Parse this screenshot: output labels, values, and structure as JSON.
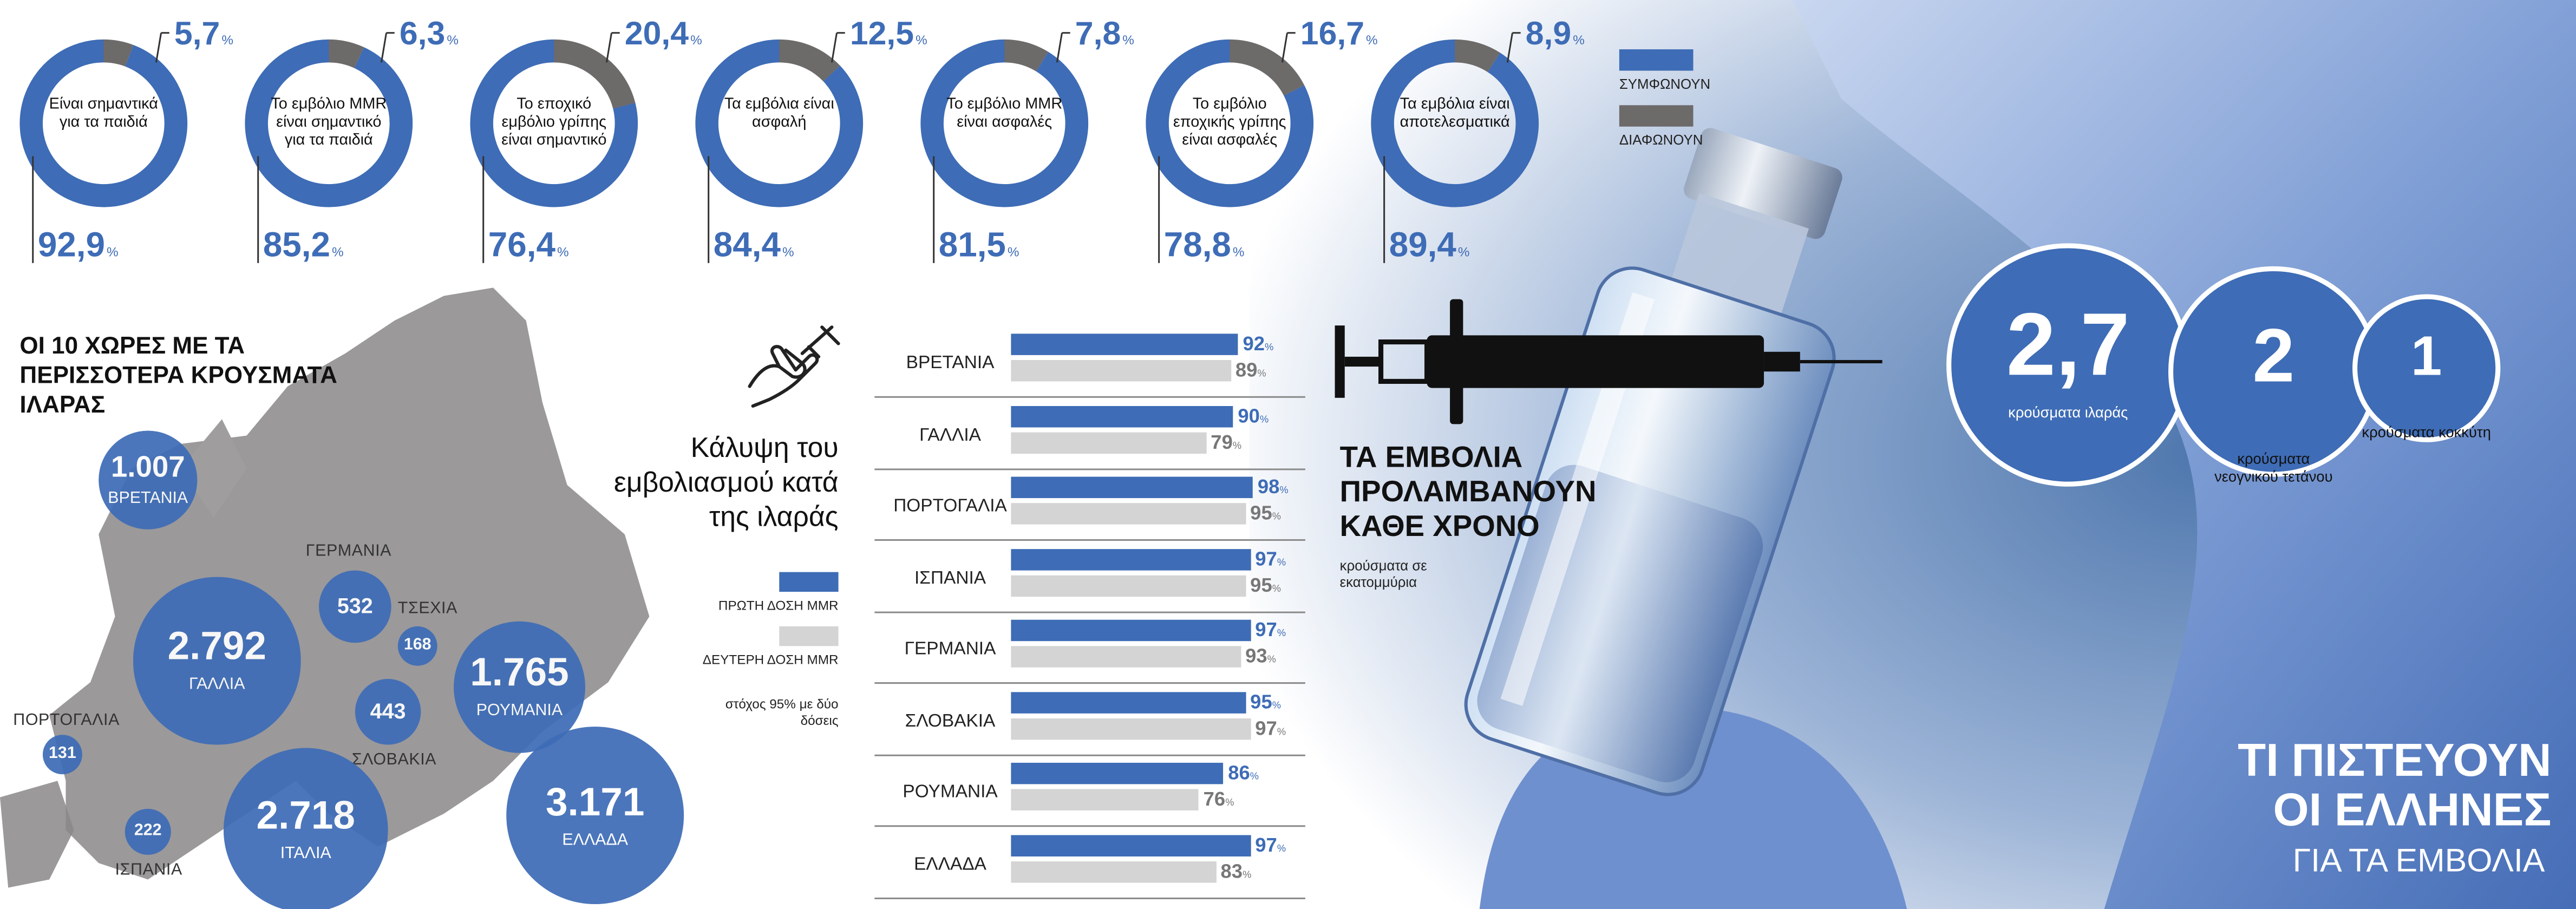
{
  "colors": {
    "agree": "#3e6cb6",
    "disagree": "#6d6a6a",
    "first_dose": "#3e6cb6",
    "second_dose": "#d4d4d4"
  },
  "legend": {
    "agree": "ΣΥΜΦΩΝΟΥΝ",
    "disagree": "ΔΙΑΦΩΝΟΥΝ"
  },
  "chart_data": [
    {
      "type": "pie",
      "subtype": "donut-row",
      "title": "ΤΙ ΠΙΣΤΕΥΟΥΝ ΟΙ ΕΛΛΗΝΕΣ ΓΙΑ ΤΑ ΕΜΒΟΛΙΑ",
      "series_names": [
        "ΣΥΜΦΩΝΟΥΝ",
        "ΔΙΑΦΩΝΟΥΝ"
      ],
      "unit": "%",
      "items": [
        {
          "label": "Είναι σημαντικά για τα παιδιά",
          "agree": 92.9,
          "disagree": 5.7,
          "agree_text": "92,9",
          "disagree_text": "5,7"
        },
        {
          "label": "Το εμβόλιο MMR είναι σημαντικό για τα παιδιά",
          "agree": 85.2,
          "disagree": 6.3,
          "agree_text": "85,2",
          "disagree_text": "6,3"
        },
        {
          "label": "Το εποχικό εμβόλιο γρίπης είναι σημαντικό",
          "agree": 76.4,
          "disagree": 20.4,
          "agree_text": "76,4",
          "disagree_text": "20,4"
        },
        {
          "label": "Τα εμβόλια είναι ασφαλή",
          "agree": 84.4,
          "disagree": 12.5,
          "agree_text": "84,4",
          "disagree_text": "12,5"
        },
        {
          "label": "Το εμβόλιο MMR είναι ασφαλές",
          "agree": 81.5,
          "disagree": 7.8,
          "agree_text": "81,5",
          "disagree_text": "7,8"
        },
        {
          "label": "Το εμβόλιο εποχικής γρίπης είναι ασφαλές",
          "agree": 78.8,
          "disagree": 16.7,
          "agree_text": "78,8",
          "disagree_text": "16,7"
        },
        {
          "label": "Τα εμβόλια είναι αποτελεσματικά",
          "agree": 89.4,
          "disagree": 8.9,
          "agree_text": "89,4",
          "disagree_text": "8,9"
        }
      ]
    },
    {
      "type": "bubble-map",
      "title": "ΟΙ 10 ΧΩΡΕΣ ΜΕ ΤΑ ΠΕΡΙΣΣΟΤΕΡΑ ΚΡΟΥΣΜΑΤΑ ΙΛΑΡΑΣ",
      "countries": [
        {
          "name": "ΒΡΕΤΑΝΙΑ",
          "value": 1007,
          "text": "1.007"
        },
        {
          "name": "ΓΑΛΛΙΑ",
          "value": 2792,
          "text": "2.792"
        },
        {
          "name": "ΓΕΡΜΑΝΙΑ",
          "value": 532,
          "text": "532"
        },
        {
          "name": "ΤΣΕΧΙΑ",
          "value": 168,
          "text": "168"
        },
        {
          "name": "ΡΟΥΜΑΝΙΑ",
          "value": 1765,
          "text": "1.765"
        },
        {
          "name": "ΣΛΟΒΑΚΙΑ",
          "value": 443,
          "text": "443"
        },
        {
          "name": "ΠΟΡΤΟΓΑΛΙΑ",
          "value": 131,
          "text": "131"
        },
        {
          "name": "ΙΣΠΑΝΙΑ",
          "value": 222,
          "text": "222"
        },
        {
          "name": "ΙΤΑΛΙΑ",
          "value": 2718,
          "text": "2.718"
        },
        {
          "name": "ΕΛΛΑΔΑ",
          "value": 3171,
          "text": "3.171"
        }
      ]
    },
    {
      "type": "bar",
      "orientation": "horizontal",
      "title": "Κάλυψη του εμβολιασμού κατά της ιλαράς",
      "unit": "%",
      "xlim": [
        0,
        100
      ],
      "target": 95,
      "target_note": "στόχος 95% με δύο δόσεις",
      "categories": [
        "ΒΡΕΤΑΝΙΑ",
        "ΓΑΛΛΙΑ",
        "ΠΟΡΤΟΓΑΛΙΑ",
        "ΙΣΠΑΝΙΑ",
        "ΓΕΡΜΑΝΙΑ",
        "ΣΛΟΒΑΚΙΑ",
        "ΡΟΥΜΑΝΙΑ",
        "ΕΛΛΑΔΑ"
      ],
      "series": [
        {
          "name": "ΠΡΩΤΗ ΔΟΣΗ MMR",
          "values": [
            92,
            90,
            98,
            97,
            97,
            95,
            86,
            97
          ]
        },
        {
          "name": "ΔΕΥΤΕΡΗ ΔΟΣΗ MMR",
          "values": [
            89,
            79,
            95,
            95,
            93,
            97,
            76,
            83
          ]
        }
      ]
    },
    {
      "type": "bubble",
      "title": "ΤΑ ΕΜΒΟΛΙΑ ΠΡΟΛΑΜΒΑΝΟΥΝ ΚΑΘΕ ΧΡΟΝΟ",
      "unit_note": "κρούσματα σε εκατομμύρια",
      "items": [
        {
          "value": 2.7,
          "text": "2,7",
          "label": "κρούσματα ιλαράς"
        },
        {
          "value": 2,
          "text": "2",
          "label": "κρούσματα νεογνικού τετάνου"
        },
        {
          "value": 1,
          "text": "1",
          "label": "κρούσματα κοκκύτη"
        }
      ]
    }
  ],
  "text": {
    "map_title": "ΟΙ 10 ΧΩΡΕΣ ΜΕ ΤΑ ΠΕΡΙΣΣΟΤΕΡΑ ΚΡΟΥΣΜΑΤΑ ΙΛΑΡΑΣ",
    "coverage_title": "Κάλυψη του εμβολιασμού κατά της ιλαράς",
    "first_dose": "ΠΡΩΤΗ ΔΟΣΗ MMR",
    "second_dose": "ΔΕΥΤΕΡΗ ΔΟΣΗ MMR",
    "target_note": "στόχος 95% με δύο δόσεις",
    "prevent_title": "ΤΑ ΕΜΒΟΛΙΑ ΠΡΟΛΑΜΒΑΝΟΥΝ ΚΑΘΕ ΧΡΟΝΟ",
    "prevent_unit": "κρούσματα σε εκατομμύρια",
    "main_title_line1": "ΤΙ ΠΙΣΤΕΥΟΥΝ",
    "main_title_line2": "ΟΙ ΕΛΛΗΝΕΣ",
    "main_subtitle": "ΓΙΑ ΤΑ ΕΜΒΟΛΙΑ",
    "percent": "%"
  }
}
